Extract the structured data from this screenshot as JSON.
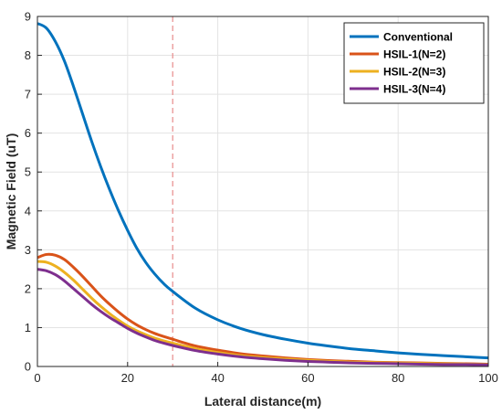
{
  "chart_data": {
    "type": "line",
    "title": "",
    "xlabel": "Lateral distance(m)",
    "ylabel": "Magnetic  Field  (uT)",
    "xlim": [
      0,
      100
    ],
    "ylim": [
      0,
      9
    ],
    "xticks": [
      0,
      20,
      40,
      60,
      80,
      100
    ],
    "yticks": [
      0,
      1,
      2,
      3,
      4,
      5,
      6,
      7,
      8,
      9
    ],
    "grid": true,
    "legend_position": "top-right",
    "reference_line": {
      "x": 30,
      "style": "dashed",
      "color": "#e88a8a"
    },
    "x": [
      0,
      2,
      4,
      6,
      8,
      10,
      12,
      14,
      16,
      18,
      20,
      22,
      24,
      26,
      28,
      30,
      35,
      40,
      45,
      50,
      55,
      60,
      65,
      70,
      75,
      80,
      85,
      90,
      95,
      100
    ],
    "series": [
      {
        "name": "Conventional",
        "color": "#0072BD",
        "values": [
          8.82,
          8.7,
          8.35,
          7.85,
          7.2,
          6.5,
          5.8,
          5.15,
          4.55,
          4.0,
          3.5,
          3.05,
          2.68,
          2.38,
          2.13,
          1.93,
          1.5,
          1.2,
          0.98,
          0.82,
          0.7,
          0.6,
          0.52,
          0.45,
          0.4,
          0.35,
          0.31,
          0.28,
          0.25,
          0.22
        ]
      },
      {
        "name": "HSIL-1(N=2)",
        "color": "#D95319",
        "values": [
          2.8,
          2.88,
          2.86,
          2.75,
          2.55,
          2.32,
          2.07,
          1.82,
          1.6,
          1.4,
          1.22,
          1.07,
          0.95,
          0.85,
          0.77,
          0.7,
          0.53,
          0.42,
          0.33,
          0.27,
          0.22,
          0.18,
          0.15,
          0.13,
          0.11,
          0.1,
          0.09,
          0.08,
          0.07,
          0.06
        ]
      },
      {
        "name": "HSIL-2(N=3)",
        "color": "#EDB120",
        "values": [
          2.7,
          2.68,
          2.58,
          2.42,
          2.22,
          1.99,
          1.76,
          1.55,
          1.36,
          1.19,
          1.04,
          0.92,
          0.82,
          0.73,
          0.66,
          0.6,
          0.46,
          0.36,
          0.28,
          0.23,
          0.19,
          0.16,
          0.13,
          0.11,
          0.1,
          0.09,
          0.08,
          0.07,
          0.06,
          0.05
        ]
      },
      {
        "name": "HSIL-3(N=4)",
        "color": "#7E2F8E",
        "values": [
          2.5,
          2.46,
          2.36,
          2.2,
          2.0,
          1.8,
          1.6,
          1.42,
          1.26,
          1.12,
          0.98,
          0.86,
          0.76,
          0.67,
          0.6,
          0.54,
          0.41,
          0.32,
          0.25,
          0.2,
          0.16,
          0.13,
          0.11,
          0.09,
          0.08,
          0.07,
          0.06,
          0.05,
          0.05,
          0.04
        ]
      }
    ]
  }
}
